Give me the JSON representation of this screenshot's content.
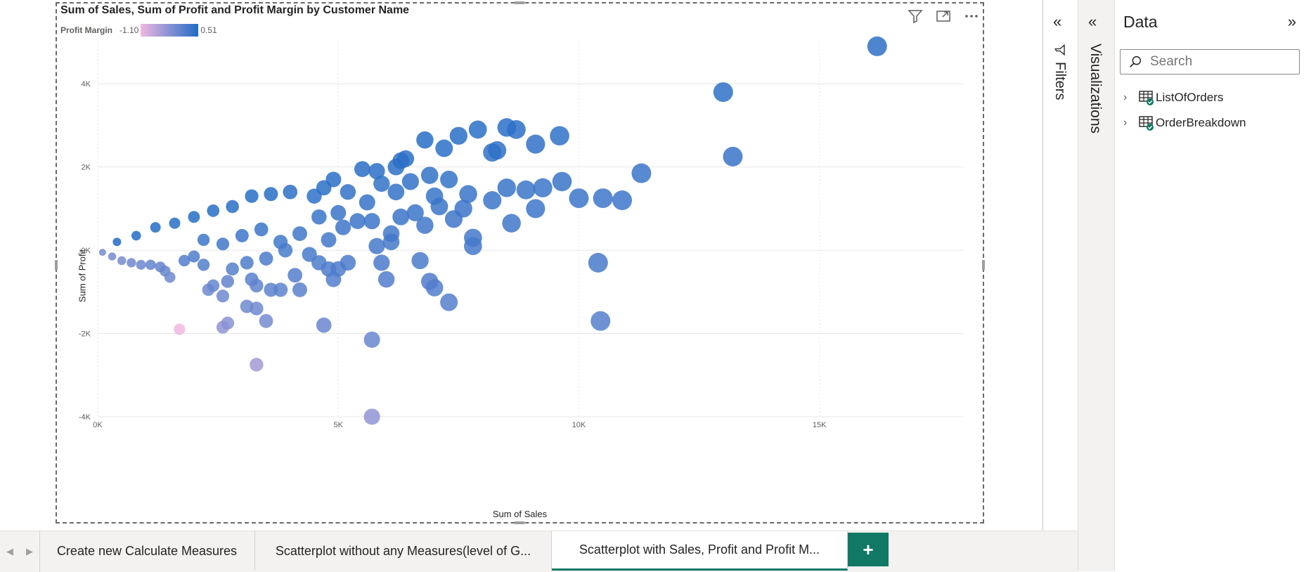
{
  "visual": {
    "title": "Sum of Sales, Sum of Profit and Profit Margin by Customer Name",
    "legend_title": "Profit Margin",
    "legend_min": "-1.10",
    "legend_max": "0.51",
    "icons": [
      "filter-icon",
      "focus-mode-icon",
      "more-options-icon"
    ]
  },
  "chart_data": {
    "type": "scatter",
    "title": "Sum of Sales, Sum of Profit and Profit Margin by Customer Name",
    "xlabel": "Sum of Sales",
    "ylabel": "Sum of Profit",
    "xlim": [
      0,
      18000
    ],
    "ylim": [
      -4000,
      5000
    ],
    "x_ticks": [
      "0K",
      "5K",
      "10K",
      "15K"
    ],
    "y_ticks": [
      "4K",
      "2K",
      "0K",
      "-2K",
      "-4K"
    ],
    "grid": true,
    "color_scale": {
      "name": "Profit Margin",
      "min": -1.1,
      "max": 0.51,
      "min_color": "#f0b8e0",
      "max_color": "#1f6bc5"
    },
    "points": [
      [
        16200,
        4900
      ],
      [
        13000,
        3800
      ],
      [
        13200,
        2250
      ],
      [
        11300,
        1850
      ],
      [
        9600,
        2750
      ],
      [
        9100,
        2550
      ],
      [
        8700,
        2900
      ],
      [
        8500,
        2950
      ],
      [
        7900,
        2900
      ],
      [
        8200,
        2350
      ],
      [
        8300,
        2400
      ],
      [
        7500,
        2750
      ],
      [
        7200,
        2450
      ],
      [
        6800,
        2650
      ],
      [
        6400,
        2200
      ],
      [
        6300,
        2150
      ],
      [
        6200,
        2000
      ],
      [
        5800,
        1900
      ],
      [
        5500,
        1950
      ],
      [
        4900,
        1700
      ],
      [
        4700,
        1500
      ],
      [
        9650,
        1650
      ],
      [
        10000,
        1250
      ],
      [
        10500,
        1250
      ],
      [
        10900,
        1200
      ],
      [
        9250,
        1500
      ],
      [
        8900,
        1450
      ],
      [
        8500,
        1500
      ],
      [
        8200,
        1200
      ],
      [
        9100,
        1000
      ],
      [
        7700,
        1350
      ],
      [
        7600,
        1000
      ],
      [
        7400,
        750
      ],
      [
        7100,
        1050
      ],
      [
        7000,
        1300
      ],
      [
        6600,
        900
      ],
      [
        6800,
        600
      ],
      [
        7800,
        300
      ],
      [
        8600,
        650
      ],
      [
        7800,
        100
      ],
      [
        10400,
        -300
      ],
      [
        10450,
        -1700
      ],
      [
        5800,
        100
      ],
      [
        6100,
        200
      ],
      [
        6700,
        -250
      ],
      [
        6900,
        -750
      ],
      [
        7000,
        -900
      ],
      [
        7300,
        -1250
      ],
      [
        5900,
        -300
      ],
      [
        6000,
        -700
      ],
      [
        5200,
        -300
      ],
      [
        5000,
        -450
      ],
      [
        4900,
        -700
      ],
      [
        4600,
        -300
      ],
      [
        4100,
        -600
      ],
      [
        4200,
        -950
      ],
      [
        3800,
        -950
      ],
      [
        3600,
        -950
      ],
      [
        3300,
        -850
      ],
      [
        3100,
        -1350
      ],
      [
        3300,
        -1400
      ],
      [
        3500,
        -1700
      ],
      [
        2700,
        -1750
      ],
      [
        2600,
        -1100
      ],
      [
        2400,
        -850
      ],
      [
        2300,
        -950
      ],
      [
        2700,
        -750
      ],
      [
        3200,
        -700
      ],
      [
        5700,
        -2150
      ],
      [
        4700,
        -1800
      ],
      [
        2600,
        -1850
      ],
      [
        1700,
        -1900
      ],
      [
        3300,
        -2750
      ],
      [
        5700,
        -4000
      ],
      [
        4800,
        -450
      ],
      [
        1500,
        -650
      ],
      [
        1400,
        -500
      ],
      [
        1300,
        -400
      ],
      [
        1100,
        -350
      ],
      [
        900,
        -350
      ],
      [
        700,
        -300
      ],
      [
        500,
        -250
      ],
      [
        300,
        -150
      ],
      [
        100,
        -50
      ],
      [
        2200,
        -350
      ],
      [
        2000,
        -150
      ],
      [
        1800,
        -250
      ],
      [
        5000,
        900
      ],
      [
        5200,
        1400
      ],
      [
        4500,
        1300
      ],
      [
        4000,
        1400
      ],
      [
        3600,
        1350
      ],
      [
        3200,
        1300
      ],
      [
        2800,
        1050
      ],
      [
        2400,
        950
      ],
      [
        2000,
        800
      ],
      [
        1600,
        650
      ],
      [
        1200,
        550
      ],
      [
        800,
        350
      ],
      [
        400,
        200
      ],
      [
        6500,
        1650
      ],
      [
        6900,
        1800
      ],
      [
        7300,
        1700
      ],
      [
        6200,
        1400
      ],
      [
        5900,
        1600
      ],
      [
        5600,
        1150
      ],
      [
        5100,
        550
      ],
      [
        4600,
        800
      ],
      [
        4200,
        400
      ],
      [
        3800,
        200
      ],
      [
        3400,
        500
      ],
      [
        3000,
        350
      ],
      [
        2600,
        150
      ],
      [
        2200,
        250
      ],
      [
        6300,
        800
      ],
      [
        5400,
        700
      ],
      [
        4800,
        250
      ],
      [
        4400,
        -100
      ],
      [
        3900,
        0
      ],
      [
        3500,
        -200
      ],
      [
        3100,
        -300
      ],
      [
        2800,
        -450
      ],
      [
        6100,
        400
      ],
      [
        5700,
        700
      ]
    ]
  },
  "filters_pane": {
    "label": "Filters"
  },
  "visualizations_pane": {
    "label": "Visualizations"
  },
  "data_pane": {
    "title": "Data",
    "search_placeholder": "Search",
    "tables": [
      {
        "label": "ListOfOrders"
      },
      {
        "label": "OrderBreakdown"
      }
    ]
  },
  "tabs": [
    {
      "label": "Create new Calculate Measures",
      "active": false
    },
    {
      "label": "Scatterplot without any Measures(level of G...",
      "active": false
    },
    {
      "label": "Scatterplot with Sales, Profit and Profit M...",
      "active": true
    }
  ],
  "add_tab_label": "+"
}
